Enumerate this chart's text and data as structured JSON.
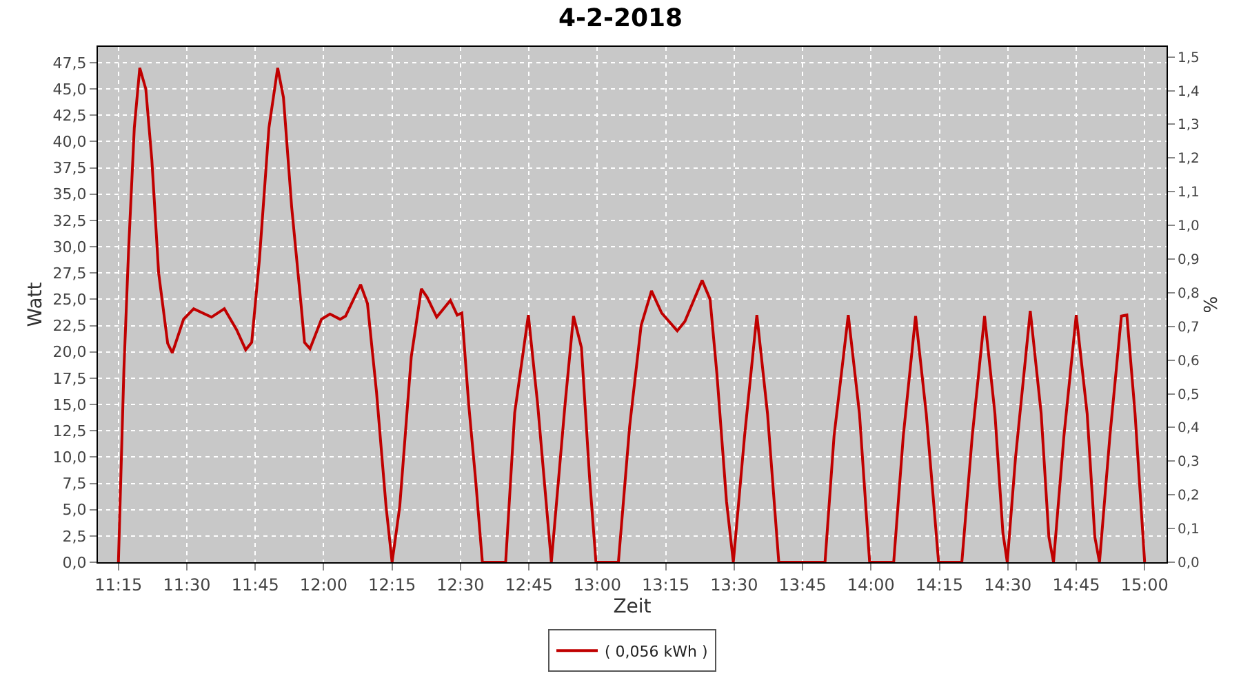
{
  "chart_data": {
    "type": "line",
    "title": "4-2-2018",
    "xlabel": "Zeit",
    "ylabel": "Watt",
    "y2label": "%",
    "x": [
      11.25,
      11.27,
      11.287,
      11.308,
      11.328,
      11.35,
      11.372,
      11.397,
      11.43,
      11.447,
      11.488,
      11.525,
      11.59,
      11.637,
      11.682,
      11.715,
      11.737,
      11.765,
      11.8,
      11.832,
      11.853,
      11.883,
      11.917,
      11.93,
      11.95,
      11.992,
      12.023,
      12.06,
      12.08,
      12.135,
      12.16,
      12.193,
      12.228,
      12.25,
      12.278,
      12.32,
      12.357,
      12.378,
      12.413,
      12.463,
      12.488,
      12.505,
      12.53,
      12.555,
      12.58,
      12.665,
      12.698,
      12.748,
      12.782,
      12.832,
      12.882,
      12.913,
      12.942,
      12.972,
      12.995,
      13.077,
      13.118,
      13.16,
      13.198,
      13.235,
      13.292,
      13.32,
      13.383,
      13.412,
      13.437,
      13.472,
      13.497,
      13.538,
      13.583,
      13.622,
      13.663,
      13.832,
      13.865,
      13.917,
      13.958,
      13.995,
      14.083,
      14.118,
      14.163,
      14.202,
      14.247,
      14.332,
      14.37,
      14.415,
      14.453,
      14.482,
      14.498,
      14.528,
      14.582,
      14.622,
      14.65,
      14.667,
      14.705,
      14.75,
      14.79,
      14.818,
      14.835,
      14.873,
      14.915,
      14.935,
      14.965,
      15.0
    ],
    "series": [
      {
        "name": "( 0,056 kWh )",
        "color": "#c00000",
        "values": [
          0,
          18.3,
          29.6,
          41.3,
          47.0,
          45.0,
          38.3,
          27.5,
          20.8,
          19.9,
          23.1,
          24.1,
          23.3,
          24.1,
          22.1,
          20.2,
          20.9,
          28.7,
          41.3,
          47.0,
          44.2,
          33.8,
          24.6,
          20.9,
          20.3,
          23.1,
          23.6,
          23.1,
          23.4,
          26.4,
          24.6,
          16.2,
          5.3,
          0,
          5.3,
          19.5,
          26.0,
          25.2,
          23.3,
          24.9,
          23.5,
          23.7,
          15.0,
          7.9,
          0,
          0,
          14.2,
          23.5,
          15.0,
          0,
          15.0,
          23.4,
          20.4,
          7.9,
          0,
          0,
          12.9,
          22.5,
          25.8,
          23.7,
          22.0,
          22.9,
          26.8,
          25.0,
          17.9,
          5.8,
          0,
          12.0,
          23.5,
          14.1,
          0,
          0,
          12.0,
          23.5,
          14.1,
          0,
          0,
          12.0,
          23.4,
          14.1,
          0,
          0,
          12.0,
          23.4,
          14.1,
          2.8,
          0,
          9.9,
          23.9,
          14.1,
          2.4,
          0,
          12.0,
          23.5,
          14.1,
          2.4,
          0,
          12.0,
          23.4,
          23.5,
          14.1,
          0
        ]
      }
    ],
    "xlim": [
      11.175,
      15.08
    ],
    "xticks": [
      {
        "value": 11.25,
        "label": "11:15"
      },
      {
        "value": 11.5,
        "label": "11:30"
      },
      {
        "value": 11.75,
        "label": "11:45"
      },
      {
        "value": 12.0,
        "label": "12:00"
      },
      {
        "value": 12.25,
        "label": "12:15"
      },
      {
        "value": 12.5,
        "label": "12:30"
      },
      {
        "value": 12.75,
        "label": "12:45"
      },
      {
        "value": 13.0,
        "label": "13:00"
      },
      {
        "value": 13.25,
        "label": "13:15"
      },
      {
        "value": 13.5,
        "label": "13:30"
      },
      {
        "value": 13.75,
        "label": "13:45"
      },
      {
        "value": 14.0,
        "label": "14:00"
      },
      {
        "value": 14.25,
        "label": "14:15"
      },
      {
        "value": 14.5,
        "label": "14:30"
      },
      {
        "value": 14.75,
        "label": "14:45"
      },
      {
        "value": 15.0,
        "label": "15:00"
      }
    ],
    "ylim": [
      0,
      49
    ],
    "yticks": [
      {
        "value": 0,
        "label": "0,0"
      },
      {
        "value": 2.5,
        "label": "2,5"
      },
      {
        "value": 5,
        "label": "5,0"
      },
      {
        "value": 7.5,
        "label": "7,5"
      },
      {
        "value": 10,
        "label": "10,0"
      },
      {
        "value": 12.5,
        "label": "12,5"
      },
      {
        "value": 15,
        "label": "15,0"
      },
      {
        "value": 17.5,
        "label": "17,5"
      },
      {
        "value": 20,
        "label": "20,0"
      },
      {
        "value": 22.5,
        "label": "22,5"
      },
      {
        "value": 25,
        "label": "25,0"
      },
      {
        "value": 27.5,
        "label": "27,5"
      },
      {
        "value": 30,
        "label": "30,0"
      },
      {
        "value": 32.5,
        "label": "32,5"
      },
      {
        "value": 35,
        "label": "35,0"
      },
      {
        "value": 37.5,
        "label": "37,5"
      },
      {
        "value": 40,
        "label": "40,0"
      },
      {
        "value": 42.5,
        "label": "42,5"
      },
      {
        "value": 45,
        "label": "45,0"
      },
      {
        "value": 47.5,
        "label": "47,5"
      }
    ],
    "y2lim": [
      0,
      1.53
    ],
    "y2ticks": [
      {
        "value": 0,
        "label": "0,0"
      },
      {
        "value": 0.1,
        "label": "0,1"
      },
      {
        "value": 0.2,
        "label": "0,2"
      },
      {
        "value": 0.3,
        "label": "0,3"
      },
      {
        "value": 0.4,
        "label": "0,4"
      },
      {
        "value": 0.5,
        "label": "0,5"
      },
      {
        "value": 0.6,
        "label": "0,6"
      },
      {
        "value": 0.7,
        "label": "0,7"
      },
      {
        "value": 0.8,
        "label": "0,8"
      },
      {
        "value": 0.9,
        "label": "0,9"
      },
      {
        "value": 1.0,
        "label": "1,0"
      },
      {
        "value": 1.1,
        "label": "1,1"
      },
      {
        "value": 1.2,
        "label": "1,2"
      },
      {
        "value": 1.3,
        "label": "1,3"
      },
      {
        "value": 1.4,
        "label": "1,4"
      },
      {
        "value": 1.5,
        "label": "1,5"
      }
    ],
    "grid": true,
    "legend": "bottom",
    "marker": "none",
    "line_style": "solid"
  }
}
